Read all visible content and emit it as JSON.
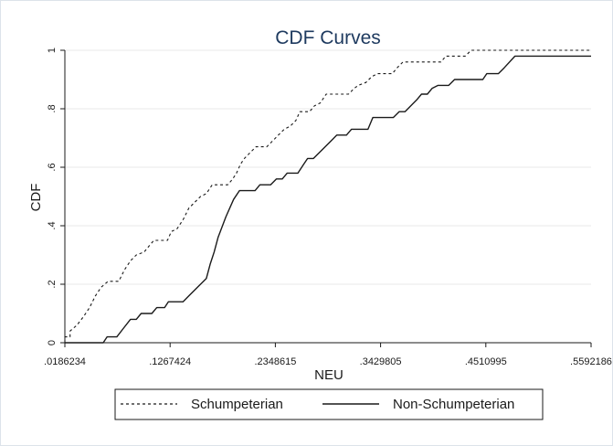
{
  "chart_data": {
    "type": "line",
    "title": "CDF Curves",
    "xlabel": "NEU",
    "ylabel": "CDF",
    "xlim": [
      0.0186234,
      0.5592186
    ],
    "ylim": [
      0,
      1
    ],
    "x_ticks": [
      0.0186234,
      0.1267424,
      0.2348615,
      0.3429805,
      0.4510995,
      0.5592186
    ],
    "x_tick_labels": [
      ".0186234",
      ".1267424",
      ".2348615",
      ".3429805",
      ".4510995",
      ".5592186"
    ],
    "y_ticks": [
      0,
      0.2,
      0.4,
      0.6,
      0.8,
      1
    ],
    "y_tick_labels": [
      "0",
      ".2",
      ".4",
      ".6",
      ".8",
      "1"
    ],
    "grid": "horizontal",
    "legend_position": "bottom",
    "series": [
      {
        "name": "Schumpeterian",
        "style": "dashed",
        "color": "#1a1a1a",
        "points": [
          [
            0.0186,
            0.0
          ],
          [
            0.0186,
            0.02
          ],
          [
            0.024,
            0.02
          ],
          [
            0.024,
            0.04
          ],
          [
            0.031,
            0.06
          ],
          [
            0.038,
            0.09
          ],
          [
            0.044,
            0.12
          ],
          [
            0.05,
            0.16
          ],
          [
            0.056,
            0.19
          ],
          [
            0.063,
            0.21
          ],
          [
            0.074,
            0.21
          ],
          [
            0.08,
            0.25
          ],
          [
            0.086,
            0.28
          ],
          [
            0.092,
            0.3
          ],
          [
            0.1,
            0.31
          ],
          [
            0.105,
            0.33
          ],
          [
            0.11,
            0.35
          ],
          [
            0.124,
            0.35
          ],
          [
            0.128,
            0.38
          ],
          [
            0.134,
            0.39
          ],
          [
            0.14,
            0.42
          ],
          [
            0.146,
            0.46
          ],
          [
            0.152,
            0.48
          ],
          [
            0.158,
            0.5
          ],
          [
            0.164,
            0.51
          ],
          [
            0.17,
            0.54
          ],
          [
            0.186,
            0.54
          ],
          [
            0.191,
            0.56
          ],
          [
            0.195,
            0.58
          ],
          [
            0.199,
            0.61
          ],
          [
            0.203,
            0.63
          ],
          [
            0.209,
            0.65
          ],
          [
            0.215,
            0.67
          ],
          [
            0.226,
            0.67
          ],
          [
            0.232,
            0.69
          ],
          [
            0.238,
            0.71
          ],
          [
            0.244,
            0.73
          ],
          [
            0.25,
            0.74
          ],
          [
            0.256,
            0.76
          ],
          [
            0.26,
            0.79
          ],
          [
            0.27,
            0.79
          ],
          [
            0.275,
            0.81
          ],
          [
            0.281,
            0.82
          ],
          [
            0.287,
            0.85
          ],
          [
            0.31,
            0.85
          ],
          [
            0.316,
            0.87
          ],
          [
            0.32,
            0.88
          ],
          [
            0.328,
            0.89
          ],
          [
            0.334,
            0.91
          ],
          [
            0.34,
            0.92
          ],
          [
            0.355,
            0.92
          ],
          [
            0.36,
            0.94
          ],
          [
            0.366,
            0.96
          ],
          [
            0.4,
            0.96
          ],
          [
            0.405,
            0.96
          ],
          [
            0.41,
            0.98
          ],
          [
            0.43,
            0.98
          ],
          [
            0.436,
            1.0
          ],
          [
            0.5592,
            1.0
          ]
        ]
      },
      {
        "name": "Non-Schumpeterian",
        "style": "solid",
        "color": "#1a1a1a",
        "points": [
          [
            0.0186,
            0.0
          ],
          [
            0.058,
            0.0
          ],
          [
            0.062,
            0.02
          ],
          [
            0.072,
            0.02
          ],
          [
            0.079,
            0.05
          ],
          [
            0.086,
            0.08
          ],
          [
            0.092,
            0.08
          ],
          [
            0.097,
            0.1
          ],
          [
            0.108,
            0.1
          ],
          [
            0.113,
            0.12
          ],
          [
            0.121,
            0.12
          ],
          [
            0.125,
            0.14
          ],
          [
            0.14,
            0.14
          ],
          [
            0.146,
            0.16
          ],
          [
            0.152,
            0.18
          ],
          [
            0.158,
            0.2
          ],
          [
            0.164,
            0.22
          ],
          [
            0.168,
            0.27
          ],
          [
            0.172,
            0.31
          ],
          [
            0.176,
            0.36
          ],
          [
            0.184,
            0.43
          ],
          [
            0.192,
            0.49
          ],
          [
            0.198,
            0.52
          ],
          [
            0.214,
            0.52
          ],
          [
            0.219,
            0.54
          ],
          [
            0.23,
            0.54
          ],
          [
            0.236,
            0.56
          ],
          [
            0.242,
            0.56
          ],
          [
            0.247,
            0.58
          ],
          [
            0.258,
            0.58
          ],
          [
            0.264,
            0.61
          ],
          [
            0.268,
            0.63
          ],
          [
            0.274,
            0.63
          ],
          [
            0.28,
            0.65
          ],
          [
            0.286,
            0.67
          ],
          [
            0.292,
            0.69
          ],
          [
            0.298,
            0.71
          ],
          [
            0.308,
            0.71
          ],
          [
            0.313,
            0.73
          ],
          [
            0.33,
            0.73
          ],
          [
            0.335,
            0.77
          ],
          [
            0.356,
            0.77
          ],
          [
            0.362,
            0.79
          ],
          [
            0.368,
            0.79
          ],
          [
            0.374,
            0.81
          ],
          [
            0.38,
            0.83
          ],
          [
            0.385,
            0.85
          ],
          [
            0.391,
            0.85
          ],
          [
            0.396,
            0.87
          ],
          [
            0.402,
            0.88
          ],
          [
            0.413,
            0.88
          ],
          [
            0.419,
            0.9
          ],
          [
            0.448,
            0.9
          ],
          [
            0.452,
            0.92
          ],
          [
            0.464,
            0.92
          ],
          [
            0.47,
            0.94
          ],
          [
            0.481,
            0.98
          ],
          [
            0.5592,
            0.98
          ]
        ]
      }
    ]
  }
}
